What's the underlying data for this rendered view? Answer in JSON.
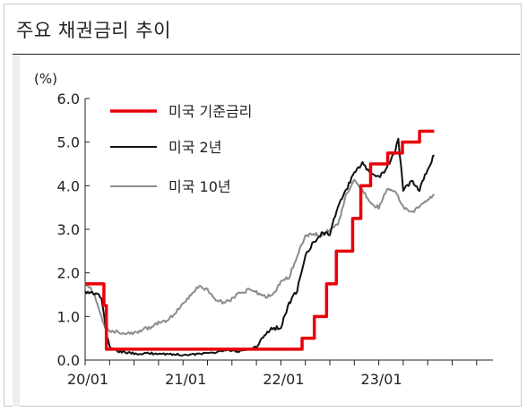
{
  "title": "주요 채권금리 추이",
  "chart_data": {
    "type": "line",
    "title": "주요 채권금리 추이",
    "ylabel": "(%)",
    "ylim": [
      0,
      6
    ],
    "yticks": [
      "0.0",
      "1.0",
      "2.0",
      "3.0",
      "4.0",
      "5.0",
      "6.0"
    ],
    "xlim": [
      0,
      50
    ],
    "xticks": [
      {
        "label": "20/01",
        "month": 0
      },
      {
        "label": "21/01",
        "month": 12
      },
      {
        "label": "22/01",
        "month": 24
      },
      {
        "label": "23/01",
        "month": 36
      }
    ],
    "grid": false,
    "legend_position": "top-left",
    "series": [
      {
        "name": "미국 기준금리",
        "color": "#e8000b",
        "style": "step",
        "points": [
          [
            0,
            1.75
          ],
          [
            2.3,
            1.75
          ],
          [
            2.3,
            1.25
          ],
          [
            2.6,
            1.25
          ],
          [
            2.6,
            0.25
          ],
          [
            26.6,
            0.25
          ],
          [
            26.6,
            0.5
          ],
          [
            28.1,
            0.5
          ],
          [
            28.1,
            1.0
          ],
          [
            29.6,
            1.0
          ],
          [
            29.6,
            1.75
          ],
          [
            30.8,
            1.75
          ],
          [
            30.8,
            2.5
          ],
          [
            32.8,
            2.5
          ],
          [
            32.8,
            3.25
          ],
          [
            33.8,
            3.25
          ],
          [
            33.8,
            4.0
          ],
          [
            35.0,
            4.0
          ],
          [
            35.0,
            4.5
          ],
          [
            37.1,
            4.5
          ],
          [
            37.1,
            4.75
          ],
          [
            38.9,
            4.75
          ],
          [
            38.9,
            5.0
          ],
          [
            41.0,
            5.0
          ],
          [
            41.0,
            5.25
          ],
          [
            42.8,
            5.25
          ]
        ]
      },
      {
        "name": "미국 2년",
        "color": "#111111",
        "style": "line",
        "points": [
          [
            0,
            1.58
          ],
          [
            1,
            1.55
          ],
          [
            2,
            1.45
          ],
          [
            2.6,
            0.6
          ],
          [
            3,
            0.3
          ],
          [
            4,
            0.2
          ],
          [
            6,
            0.15
          ],
          [
            9,
            0.15
          ],
          [
            12,
            0.12
          ],
          [
            15,
            0.15
          ],
          [
            17,
            0.22
          ],
          [
            19,
            0.2
          ],
          [
            20,
            0.25
          ],
          [
            21,
            0.3
          ],
          [
            22,
            0.55
          ],
          [
            23,
            0.73
          ],
          [
            24,
            0.75
          ],
          [
            25,
            1.3
          ],
          [
            26,
            1.6
          ],
          [
            27,
            2.4
          ],
          [
            28,
            2.7
          ],
          [
            29,
            2.9
          ],
          [
            30,
            2.9
          ],
          [
            31,
            3.5
          ],
          [
            32,
            3.9
          ],
          [
            33,
            4.3
          ],
          [
            34,
            4.5
          ],
          [
            35,
            4.3
          ],
          [
            36,
            4.2
          ],
          [
            37,
            4.4
          ],
          [
            38,
            4.8
          ],
          [
            38.4,
            5.05
          ],
          [
            39,
            3.9
          ],
          [
            40,
            4.1
          ],
          [
            41,
            3.9
          ],
          [
            42,
            4.4
          ],
          [
            42.8,
            4.7
          ]
        ]
      },
      {
        "name": "미국 10년",
        "color": "#8c8c8c",
        "style": "line",
        "points": [
          [
            0,
            1.8
          ],
          [
            1,
            1.55
          ],
          [
            2,
            1.0
          ],
          [
            2.6,
            0.7
          ],
          [
            3,
            0.65
          ],
          [
            4,
            0.65
          ],
          [
            6,
            0.6
          ],
          [
            7,
            0.7
          ],
          [
            8,
            0.75
          ],
          [
            9,
            0.85
          ],
          [
            10,
            0.9
          ],
          [
            11,
            1.08
          ],
          [
            12,
            1.3
          ],
          [
            13,
            1.5
          ],
          [
            14,
            1.7
          ],
          [
            15,
            1.6
          ],
          [
            16,
            1.4
          ],
          [
            17,
            1.3
          ],
          [
            18,
            1.4
          ],
          [
            19,
            1.55
          ],
          [
            20,
            1.6
          ],
          [
            21,
            1.55
          ],
          [
            22,
            1.45
          ],
          [
            23,
            1.5
          ],
          [
            24,
            1.8
          ],
          [
            25,
            1.9
          ],
          [
            26,
            2.4
          ],
          [
            27,
            2.85
          ],
          [
            28,
            2.9
          ],
          [
            29,
            2.85
          ],
          [
            30,
            3.0
          ],
          [
            31,
            3.1
          ],
          [
            32,
            3.8
          ],
          [
            33,
            4.1
          ],
          [
            34,
            3.9
          ],
          [
            35,
            3.6
          ],
          [
            36,
            3.5
          ],
          [
            37,
            3.9
          ],
          [
            38,
            3.9
          ],
          [
            39,
            3.5
          ],
          [
            40,
            3.4
          ],
          [
            41,
            3.5
          ],
          [
            42,
            3.7
          ],
          [
            42.8,
            3.8
          ]
        ]
      }
    ]
  }
}
